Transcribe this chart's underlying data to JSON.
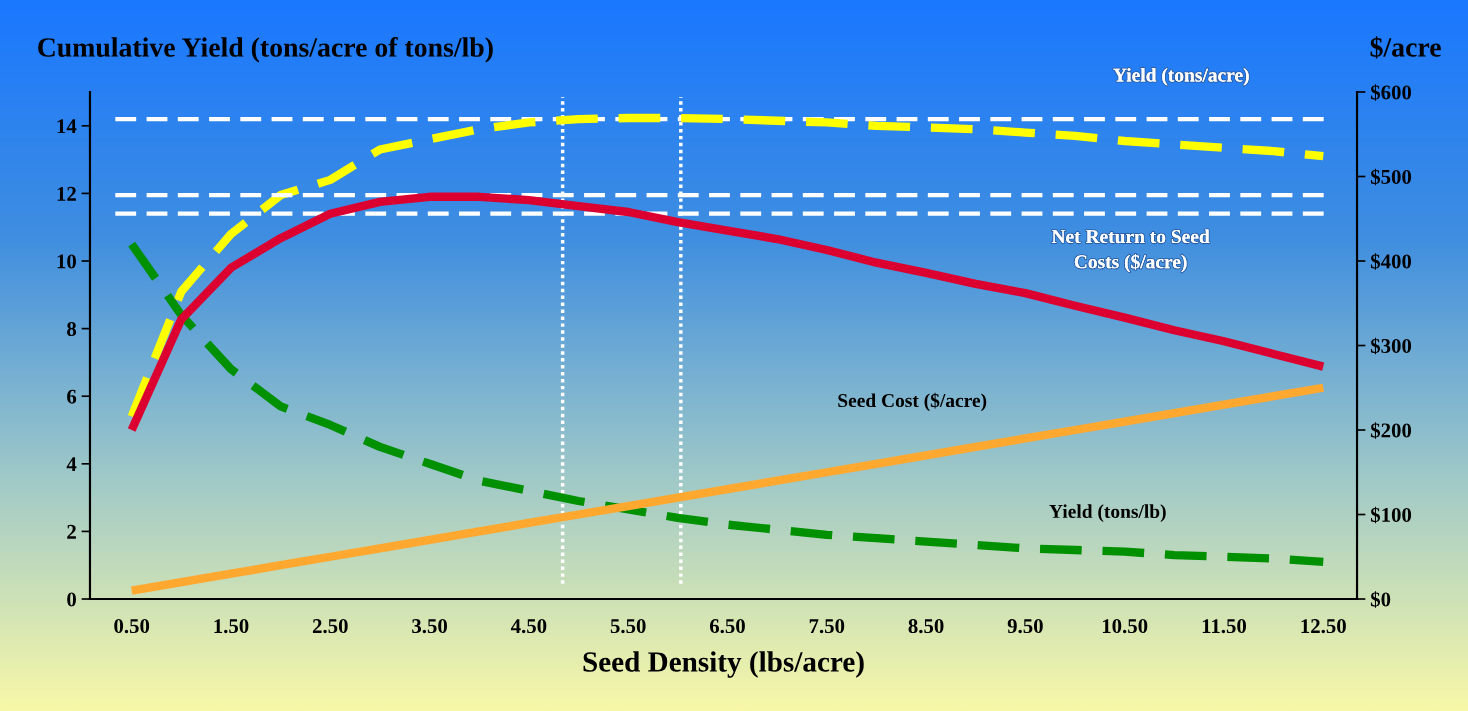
{
  "chart_data": {
    "type": "line",
    "ylabel": "Cumulative Yield (tons/acre of tons/lb)",
    "y2label": "$/acre",
    "xlabel": "Seed Density (lbs/acre)",
    "x": [
      0.5,
      1.0,
      1.5,
      2.0,
      2.5,
      3.0,
      3.5,
      4.0,
      4.5,
      5.0,
      5.5,
      6.0,
      6.5,
      7.0,
      7.5,
      8.0,
      8.5,
      9.0,
      9.5,
      10.0,
      10.5,
      11.0,
      11.5,
      12.0,
      12.5
    ],
    "series": [
      {
        "name": "Yield (tons/acre)",
        "color": "#ffff00",
        "line_style": "dashed",
        "axis": "y",
        "values": [
          5.4,
          9.1,
          10.8,
          11.95,
          12.4,
          13.3,
          13.6,
          13.9,
          14.1,
          14.2,
          14.23,
          14.23,
          14.2,
          14.15,
          14.1,
          14.0,
          13.95,
          13.9,
          13.8,
          13.7,
          13.55,
          13.45,
          13.35,
          13.25,
          13.1
        ]
      },
      {
        "name": "Net Return to Seed\nCosts ($/acre)",
        "color": "#dc0030",
        "line_style": "solid",
        "axis": "y2",
        "values": [
          200,
          331,
          392,
          427,
          456,
          470,
          476,
          476,
          472,
          465,
          458,
          446,
          436,
          426,
          413,
          398,
          386,
          373,
          362,
          347,
          333,
          318,
          305,
          290,
          275
        ]
      },
      {
        "name": "Seed Cost ($/acre)",
        "color": "#ffa830",
        "line_style": "solid",
        "axis": "y2",
        "values": [
          10,
          20,
          30,
          40,
          50,
          60,
          70,
          80,
          90,
          100,
          110,
          120,
          130,
          140,
          150,
          160,
          170,
          180,
          190,
          200,
          210,
          220,
          230,
          240,
          250
        ]
      },
      {
        "name": "Yield (tons/lb)",
        "color": "#009000",
        "line_style": "dashed",
        "axis": "y",
        "values": [
          10.5,
          8.4,
          6.8,
          5.7,
          5.15,
          4.5,
          4.0,
          3.5,
          3.2,
          2.9,
          2.65,
          2.4,
          2.2,
          2.05,
          1.9,
          1.8,
          1.7,
          1.6,
          1.5,
          1.45,
          1.4,
          1.3,
          1.25,
          1.2,
          1.1
        ]
      }
    ],
    "xlim": [
      0.08,
      12.84
    ],
    "xticks": [
      {
        "value": 0.5,
        "label": "0.50"
      },
      {
        "value": 1.5,
        "label": "1.50"
      },
      {
        "value": 2.5,
        "label": "2.50"
      },
      {
        "value": 3.5,
        "label": "3.50"
      },
      {
        "value": 4.5,
        "label": "4.50"
      },
      {
        "value": 5.5,
        "label": "5.50"
      },
      {
        "value": 6.5,
        "label": "6.50"
      },
      {
        "value": 7.5,
        "label": "7.50"
      },
      {
        "value": 8.5,
        "label": "8.50"
      },
      {
        "value": 9.5,
        "label": "9.50"
      },
      {
        "value": 10.5,
        "label": "10.50"
      },
      {
        "value": 11.5,
        "label": "11.50"
      },
      {
        "value": 12.5,
        "label": "12.50"
      }
    ],
    "ylim": [
      0,
      15
    ],
    "yticks": [
      0,
      2,
      4,
      6,
      8,
      10,
      12,
      14
    ],
    "y2lim": [
      0,
      600
    ],
    "y2ticks": [
      {
        "value": 0,
        "label": "$0"
      },
      {
        "value": 100,
        "label": "$100"
      },
      {
        "value": 200,
        "label": "$200"
      },
      {
        "value": 300,
        "label": "$300"
      },
      {
        "value": 400,
        "label": "$400"
      },
      {
        "value": 500,
        "label": "$500"
      },
      {
        "value": 600,
        "label": "$600"
      }
    ],
    "ref_lines": [
      {
        "axis": "y",
        "value": 14.2,
        "color": "#ffffff",
        "line_style": "dashed"
      },
      {
        "axis": "y2",
        "value": 478,
        "color": "#ffffff",
        "line_style": "dashed"
      },
      {
        "axis": "y2",
        "value": 456,
        "color": "#ffffff",
        "line_style": "dashed"
      },
      {
        "axis": "x",
        "value": 4.84,
        "color": "#ffffff",
        "line_style": "dotted"
      },
      {
        "axis": "x",
        "value": 6.03,
        "color": "#ffffff",
        "line_style": "dotted"
      }
    ],
    "grid": false,
    "marker": "none"
  }
}
